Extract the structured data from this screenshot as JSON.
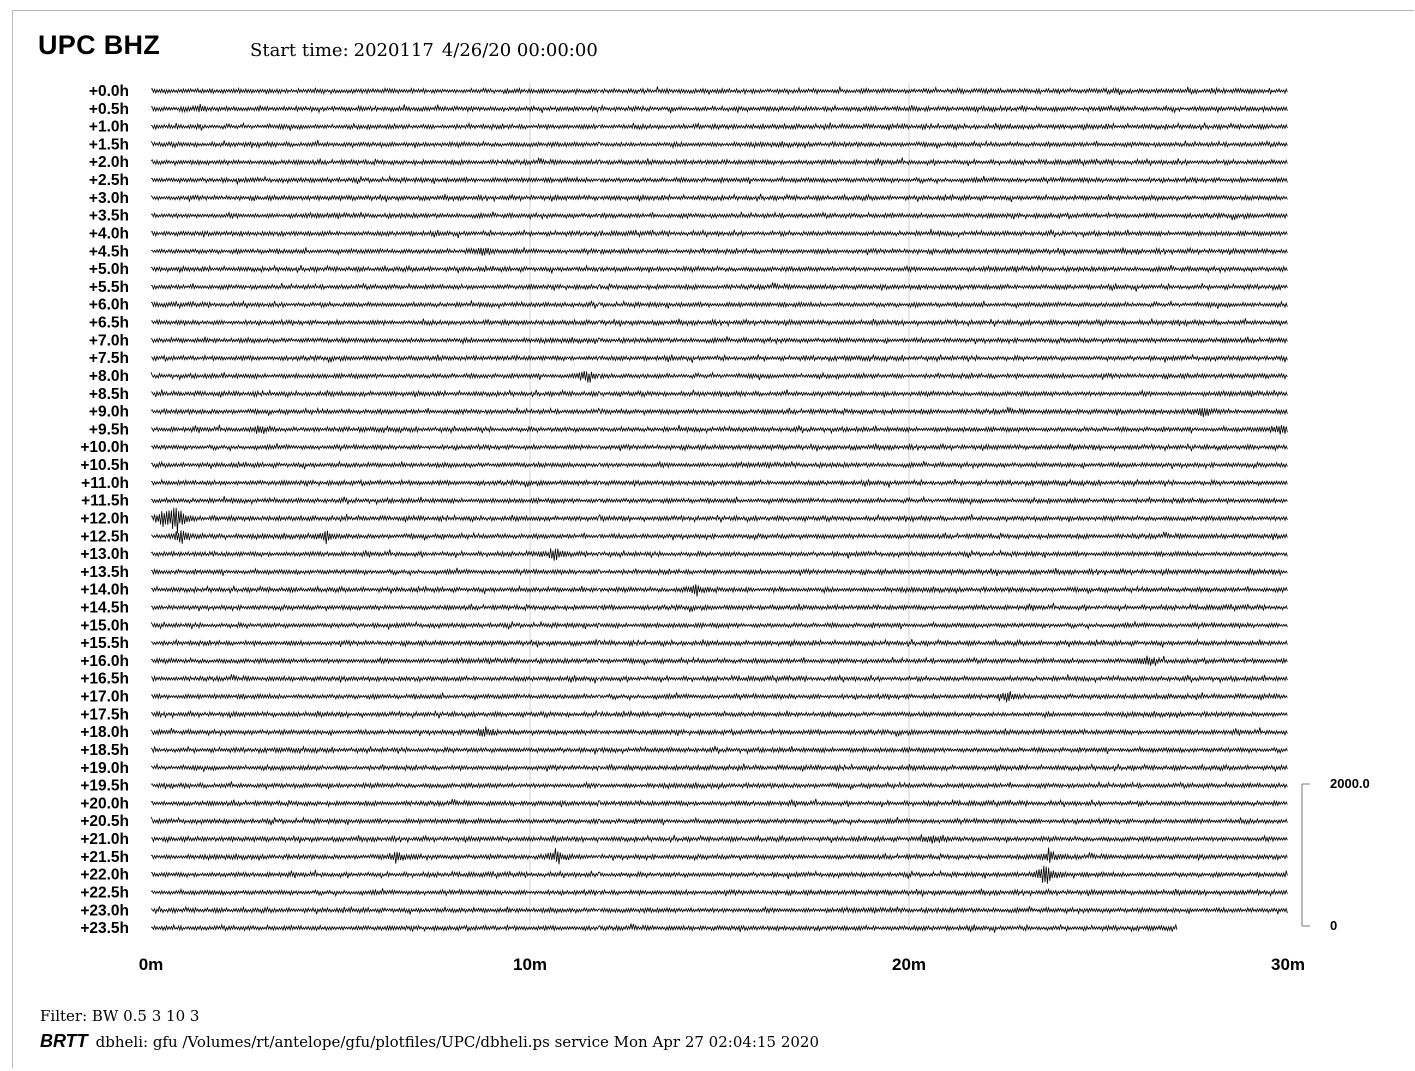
{
  "header": {
    "station": "UPC BHZ",
    "start_label": "Start time:",
    "start_julian": "2020117",
    "start_datetime": "4/26/20 00:00:00"
  },
  "footer": {
    "filter": "Filter: BW 0.5 3 10 3",
    "brand": "BRTT",
    "service_line": "dbheli: gfu /Volumes/rt/antelope/gfu/plotfiles/UPC/dbheli.ps service Mon Apr 27 02:04:15 2020"
  },
  "chart_data": {
    "type": "line",
    "title": "UPC BHZ",
    "subtitle": "Start time: 2020117  4/26/20 00:00:00",
    "row_labels": [
      "+0.0h",
      "+0.5h",
      "+1.0h",
      "+1.5h",
      "+2.0h",
      "+2.5h",
      "+3.0h",
      "+3.5h",
      "+4.0h",
      "+4.5h",
      "+5.0h",
      "+5.5h",
      "+6.0h",
      "+6.5h",
      "+7.0h",
      "+7.5h",
      "+8.0h",
      "+8.5h",
      "+9.0h",
      "+9.5h",
      "+10.0h",
      "+10.5h",
      "+11.0h",
      "+11.5h",
      "+12.0h",
      "+12.5h",
      "+13.0h",
      "+13.5h",
      "+14.0h",
      "+14.5h",
      "+15.0h",
      "+15.5h",
      "+16.0h",
      "+16.5h",
      "+17.0h",
      "+17.5h",
      "+18.0h",
      "+18.5h",
      "+19.0h",
      "+19.5h",
      "+20.0h",
      "+20.5h",
      "+21.0h",
      "+21.5h",
      "+22.0h",
      "+22.5h",
      "+23.0h",
      "+23.5h"
    ],
    "x_ticks": [
      {
        "value": 0,
        "label": "0m"
      },
      {
        "value": 10,
        "label": "10m"
      },
      {
        "value": 20,
        "label": "20m"
      },
      {
        "value": 30,
        "label": "30m"
      }
    ],
    "xlim": [
      0,
      30
    ],
    "grid_x": [
      10,
      20
    ],
    "scale_bar": {
      "top_label": "2000.0",
      "bottom_label": "0"
    },
    "last_row_end_minute": 27.1,
    "events": [
      {
        "row": 24,
        "minute": 0.7,
        "amplitude": 2.6
      },
      {
        "row": 24,
        "minute": 0.3,
        "amplitude": 1.4
      },
      {
        "row": 25,
        "minute": 0.8,
        "amplitude": 1.3
      },
      {
        "row": 25,
        "minute": 4.6,
        "amplitude": 0.9
      },
      {
        "row": 44,
        "minute": 23.6,
        "amplitude": 2.0
      },
      {
        "row": 43,
        "minute": 23.7,
        "amplitude": 1.1
      },
      {
        "row": 43,
        "minute": 10.7,
        "amplitude": 1.2
      },
      {
        "row": 43,
        "minute": 6.5,
        "amplitude": 0.9
      },
      {
        "row": 16,
        "minute": 11.5,
        "amplitude": 1.0
      },
      {
        "row": 18,
        "minute": 27.8,
        "amplitude": 0.9
      },
      {
        "row": 19,
        "minute": 29.8,
        "amplitude": 0.9
      },
      {
        "row": 19,
        "minute": 2.9,
        "amplitude": 0.8
      },
      {
        "row": 28,
        "minute": 14.4,
        "amplitude": 0.9
      },
      {
        "row": 34,
        "minute": 22.6,
        "amplitude": 0.8
      },
      {
        "row": 26,
        "minute": 10.7,
        "amplitude": 0.8
      },
      {
        "row": 36,
        "minute": 8.8,
        "amplitude": 0.7
      },
      {
        "row": 9,
        "minute": 8.8,
        "amplitude": 0.7
      },
      {
        "row": 32,
        "minute": 26.3,
        "amplitude": 0.7
      },
      {
        "row": 42,
        "minute": 20.6,
        "amplitude": 0.6
      },
      {
        "row": 1,
        "minute": 1.3,
        "amplitude": 0.5
      }
    ]
  },
  "colors": {
    "trace": "#000000",
    "grid": "#d0d0d0",
    "frame": "#b8b8b8",
    "background": "#ffffff"
  }
}
